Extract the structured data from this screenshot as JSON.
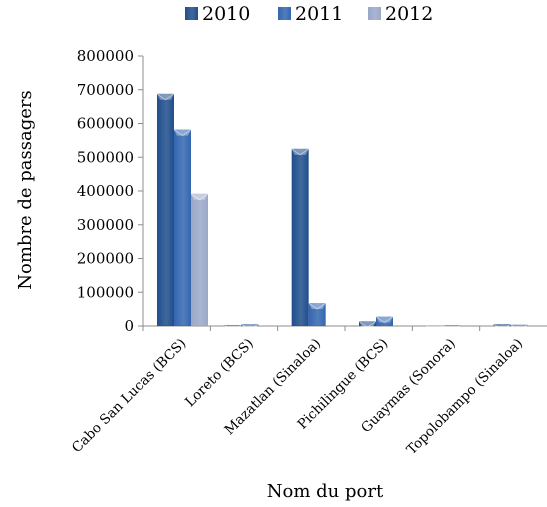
{
  "chart_data": {
    "type": "bar",
    "categories": [
      "Cabo San Lucas (BCS)",
      "Loreto (BCS)",
      "Mazatlan (Sinaloa)",
      "Pichilingue (BCS)",
      "Guaymas (Sonora)",
      "Topolobampo (Sinaloa)"
    ],
    "series": [
      {
        "name": "2010",
        "values": [
          688000,
          3000,
          525000,
          14000,
          1000,
          6000
        ],
        "color": "#1f4e8c"
      },
      {
        "name": "2011",
        "values": [
          582000,
          6000,
          68000,
          28000,
          3000,
          4000
        ],
        "color": "#3366b0"
      },
      {
        "name": "2012",
        "values": [
          392000,
          0,
          0,
          0,
          0,
          0
        ],
        "color": "#9aa8c8"
      }
    ],
    "title": "",
    "xlabel": "Nom du port",
    "ylabel": "Nombre de passagers",
    "ylim": [
      0,
      800000
    ],
    "yticks": [
      0,
      100000,
      200000,
      300000,
      400000,
      500000,
      600000,
      700000,
      800000
    ],
    "grid": false,
    "legend": "top"
  }
}
